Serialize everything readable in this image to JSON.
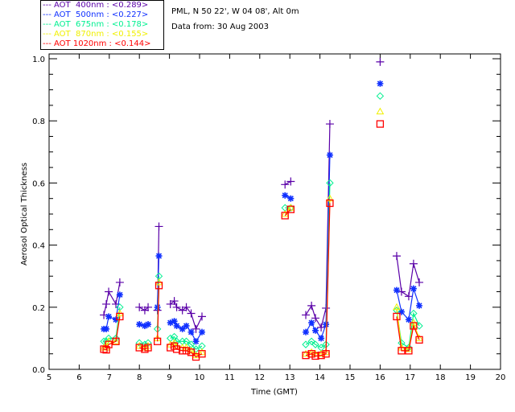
{
  "header": {
    "location": "PML, N 50 22', W 04 08', Alt 0m",
    "date": "Data from: 30 Aug 2003"
  },
  "chart_data": {
    "type": "line",
    "xlabel": "Time (GMT)",
    "ylabel": "Aerosol Optical Thickness",
    "xlim": [
      5,
      20
    ],
    "ylim": [
      0,
      1.0
    ],
    "xticks": [
      "5",
      "6",
      "7",
      "8",
      "9",
      "10",
      "11",
      "12",
      "13",
      "14",
      "15",
      "16",
      "17",
      "18",
      "19",
      "20"
    ],
    "yticks": [
      "0.0",
      "0.2",
      "0.4",
      "0.6",
      "0.8",
      "1.0"
    ],
    "legend_position": "top-left outside",
    "groups_x": [
      [
        6.82,
        6.9,
        6.98,
        7.22,
        7.35
      ],
      [
        8.0,
        8.18,
        8.29
      ],
      [
        8.6,
        8.65
      ],
      [
        9.03,
        9.16,
        9.24,
        9.43,
        9.56,
        9.72,
        9.88,
        10.08
      ],
      [
        12.84,
        13.03
      ],
      [
        13.53,
        13.72,
        13.85,
        14.04,
        14.2,
        14.33
      ],
      [
        16.0
      ],
      [
        16.55,
        16.71,
        16.95,
        17.11,
        17.3
      ]
    ],
    "series": [
      {
        "name": "AOT  400nm : <0.289>",
        "color": "#5a00a8",
        "symbol": "plus",
        "groups": [
          [
            0.175,
            0.21,
            0.25,
            0.21,
            0.28
          ],
          [
            0.2,
            0.19,
            0.2
          ],
          [
            0.19,
            0.46
          ],
          [
            0.21,
            0.22,
            0.2,
            0.19,
            0.2,
            0.18,
            0.13,
            0.17
          ],
          [
            0.595,
            0.605
          ],
          [
            0.175,
            0.205,
            0.165,
            0.135,
            0.197,
            0.79
          ],
          [
            0.99
          ],
          [
            0.365,
            0.25,
            0.235,
            0.34,
            0.28
          ]
        ]
      },
      {
        "name": "AOT  500nm : <0.227>",
        "color": "#1030ff",
        "symbol": "asterisk",
        "groups": [
          [
            0.13,
            0.13,
            0.17,
            0.16,
            0.24
          ],
          [
            0.145,
            0.14,
            0.145
          ],
          [
            0.2,
            0.365
          ],
          [
            0.15,
            0.155,
            0.14,
            0.13,
            0.14,
            0.12,
            0.09,
            0.12
          ],
          [
            0.56,
            0.55
          ],
          [
            0.12,
            0.15,
            0.125,
            0.1,
            0.145,
            0.69
          ],
          [
            0.92
          ],
          [
            0.255,
            0.185,
            0.16,
            0.26,
            0.205
          ]
        ]
      },
      {
        "name": "AOT  675nm : <0.178>",
        "color": "#00f090",
        "symbol": "diamond",
        "groups": [
          [
            0.09,
            0.09,
            0.1,
            0.1,
            0.2
          ],
          [
            0.085,
            0.08,
            0.085
          ],
          [
            0.13,
            0.3
          ],
          [
            0.1,
            0.105,
            0.09,
            0.09,
            0.09,
            0.08,
            0.065,
            0.075
          ],
          [
            0.52,
            0.52
          ],
          [
            0.08,
            0.09,
            0.08,
            0.07,
            0.08,
            0.6
          ],
          [
            0.88
          ],
          [
            0.19,
            0.085,
            0.07,
            0.18,
            0.14
          ]
        ]
      },
      {
        "name": "AOT  870nm : <0.155>",
        "color": "#f0f000",
        "symbol": "triangle",
        "groups": [
          [
            0.07,
            0.07,
            0.09,
            0.09,
            0.18
          ],
          [
            0.075,
            0.07,
            0.075
          ],
          [
            0.1,
            0.28
          ],
          [
            0.08,
            0.085,
            0.075,
            0.07,
            0.07,
            0.06,
            0.045,
            0.055
          ],
          [
            0.5,
            0.52
          ],
          [
            0.05,
            0.055,
            0.05,
            0.05,
            0.055,
            0.55
          ],
          [
            0.83
          ],
          [
            0.2,
            0.07,
            0.065,
            0.15,
            0.1
          ]
        ]
      },
      {
        "name": "AOT 1020nm : <0.144>",
        "color": "#ff0000",
        "symbol": "square",
        "groups": [
          [
            0.065,
            0.063,
            0.08,
            0.09,
            0.17
          ],
          [
            0.07,
            0.065,
            0.07
          ],
          [
            0.09,
            0.27
          ],
          [
            0.07,
            0.075,
            0.065,
            0.06,
            0.06,
            0.055,
            0.04,
            0.05
          ],
          [
            0.495,
            0.515
          ],
          [
            0.045,
            0.05,
            0.043,
            0.045,
            0.05,
            0.535
          ],
          [
            0.79
          ],
          [
            0.17,
            0.06,
            0.06,
            0.14,
            0.095
          ]
        ]
      }
    ]
  }
}
